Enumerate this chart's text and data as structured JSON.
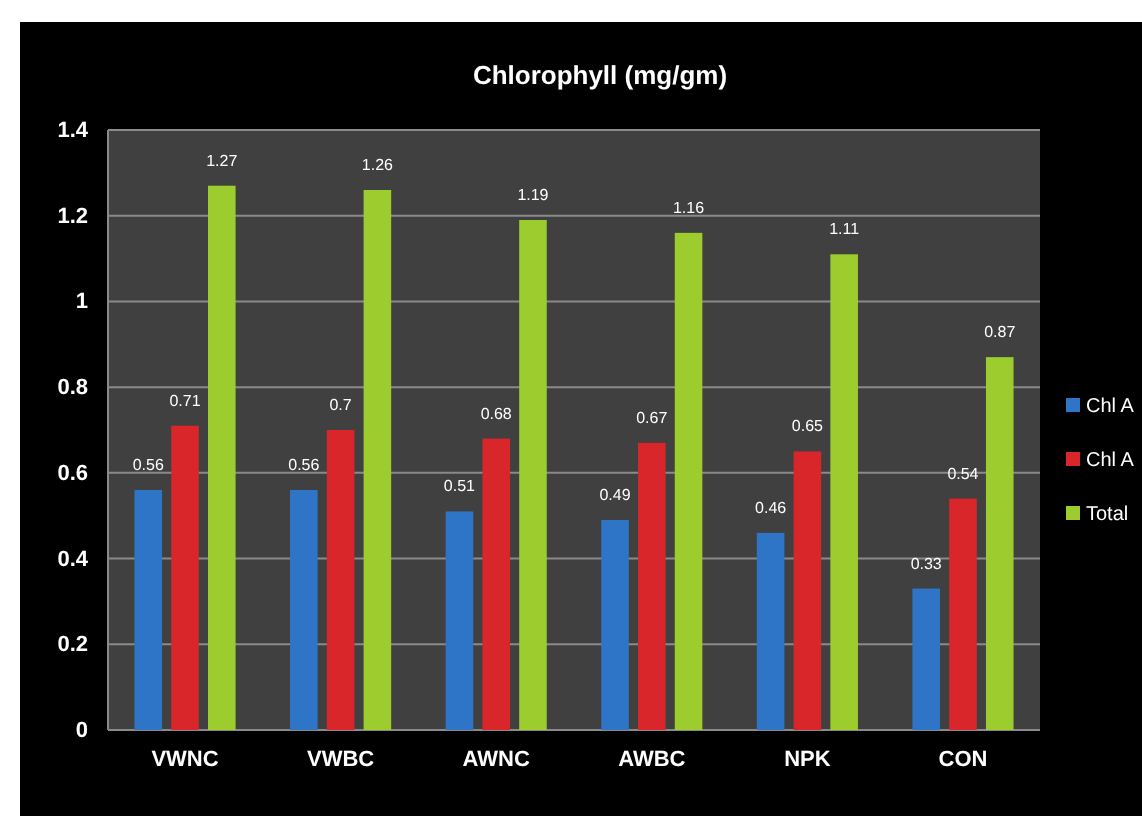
{
  "chart_data": {
    "type": "bar",
    "title": "Chlorophyll (mg/gm)",
    "categories": [
      "VWNC",
      "VWBC",
      "AWNC",
      "AWBC",
      "NPK",
      "CON"
    ],
    "series": [
      {
        "name": "Chl A",
        "color": "#2e75c8",
        "values": [
          0.56,
          0.56,
          0.51,
          0.49,
          0.46,
          0.33
        ]
      },
      {
        "name": "Chl A",
        "color": "#d8262b",
        "values": [
          0.71,
          0.7,
          0.68,
          0.67,
          0.65,
          0.54
        ]
      },
      {
        "name": "Total",
        "color": "#9ccc2e",
        "values": [
          1.27,
          1.26,
          1.19,
          1.16,
          1.11,
          0.87
        ]
      }
    ],
    "ylim": [
      0,
      1.4
    ],
    "yticks": [
      0,
      0.2,
      0.4,
      0.6,
      0.8,
      1,
      1.2,
      1.4
    ],
    "grid": "y",
    "legend": "right",
    "data_labels": true
  }
}
